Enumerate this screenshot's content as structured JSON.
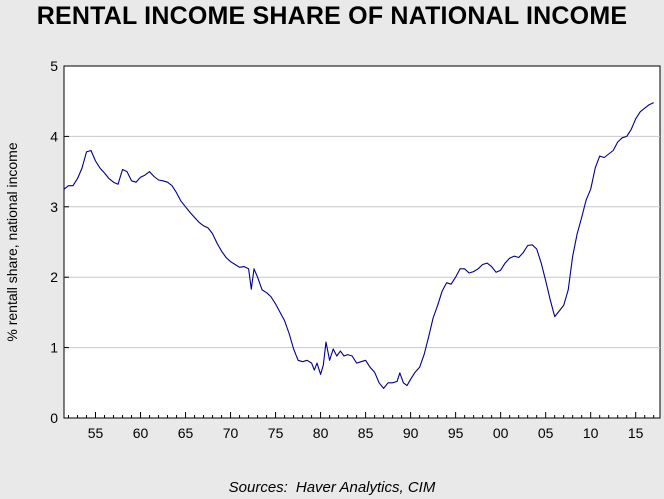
{
  "chart_data": {
    "type": "line",
    "title": "RENTAL INCOME SHARE OF NATIONAL INCOME",
    "ylabel": "% rentall share, national income",
    "xlabel": "",
    "source_label": "Sources:",
    "source_text": "Haver Analytics, CIM",
    "ylim": [
      0,
      5
    ],
    "xlim": [
      1951.5,
      2017.7
    ],
    "yticks": [
      0,
      1,
      2,
      3,
      4,
      5
    ],
    "ytick_labels": [
      "0",
      "1",
      "2",
      "3",
      "4",
      "5"
    ],
    "xticks": [
      1955,
      1960,
      1965,
      1970,
      1975,
      1980,
      1985,
      1990,
      1995,
      2000,
      2005,
      2010,
      2015
    ],
    "xtick_labels": [
      "55",
      "60",
      "65",
      "70",
      "75",
      "80",
      "85",
      "90",
      "95",
      "00",
      "05",
      "10",
      "15"
    ],
    "grid": "horizontal",
    "line_color": "#00008b",
    "series": [
      {
        "x": [
          1951.5,
          1952.0,
          1952.5,
          1953.0,
          1953.5,
          1954.0,
          1954.5,
          1955.0,
          1955.5,
          1956.0,
          1956.5,
          1957.0,
          1957.5,
          1958.0,
          1958.5,
          1959.0,
          1959.5,
          1960.0,
          1960.5,
          1961.0,
          1961.5,
          1962.0,
          1962.5,
          1963.0,
          1963.5,
          1964.0,
          1964.5,
          1965.0,
          1965.5,
          1966.0,
          1966.5,
          1967.0,
          1967.5,
          1968.0,
          1968.5,
          1969.0,
          1969.5,
          1970.0,
          1970.5,
          1971.0,
          1971.5,
          1972.0,
          1972.3,
          1972.6,
          1973.0,
          1973.5,
          1974.0,
          1974.5,
          1975.0,
          1975.5,
          1976.0,
          1976.5,
          1977.0,
          1977.5,
          1978.0,
          1978.5,
          1979.0,
          1979.3,
          1979.6,
          1980.0,
          1980.3,
          1980.6,
          1981.0,
          1981.4,
          1981.8,
          1982.2,
          1982.6,
          1983.0,
          1983.5,
          1984.0,
          1984.5,
          1985.0,
          1985.5,
          1986.0,
          1986.5,
          1987.0,
          1987.5,
          1988.0,
          1988.5,
          1988.8,
          1989.2,
          1989.6,
          1990.0,
          1990.5,
          1991.0,
          1991.5,
          1992.0,
          1992.5,
          1993.0,
          1993.5,
          1994.0,
          1994.5,
          1995.0,
          1995.5,
          1996.0,
          1996.5,
          1997.0,
          1997.5,
          1998.0,
          1998.5,
          1999.0,
          1999.5,
          2000.0,
          2000.5,
          2001.0,
          2001.5,
          2002.0,
          2002.5,
          2003.0,
          2003.5,
          2004.0,
          2004.5,
          2005.0,
          2005.5,
          2006.0,
          2006.5,
          2007.0,
          2007.5,
          2008.0,
          2008.5,
          2009.0,
          2009.5,
          2010.0,
          2010.5,
          2011.0,
          2011.5,
          2012.0,
          2012.5,
          2013.0,
          2013.5,
          2014.0,
          2014.5,
          2015.0,
          2015.5,
          2016.0,
          2016.5,
          2017.0
        ],
        "y": [
          3.25,
          3.3,
          3.3,
          3.4,
          3.55,
          3.78,
          3.8,
          3.65,
          3.55,
          3.48,
          3.4,
          3.35,
          3.32,
          3.53,
          3.5,
          3.37,
          3.35,
          3.42,
          3.45,
          3.5,
          3.43,
          3.38,
          3.37,
          3.35,
          3.3,
          3.2,
          3.08,
          3.0,
          2.92,
          2.85,
          2.78,
          2.73,
          2.7,
          2.62,
          2.48,
          2.37,
          2.28,
          2.22,
          2.18,
          2.14,
          2.15,
          2.12,
          1.83,
          2.12,
          2.0,
          1.82,
          1.78,
          1.72,
          1.62,
          1.5,
          1.38,
          1.2,
          0.98,
          0.82,
          0.8,
          0.82,
          0.78,
          0.68,
          0.78,
          0.62,
          0.75,
          1.08,
          0.82,
          0.98,
          0.88,
          0.95,
          0.88,
          0.9,
          0.88,
          0.78,
          0.8,
          0.82,
          0.72,
          0.65,
          0.5,
          0.42,
          0.5,
          0.5,
          0.52,
          0.64,
          0.5,
          0.46,
          0.55,
          0.65,
          0.72,
          0.9,
          1.15,
          1.42,
          1.6,
          1.8,
          1.92,
          1.9,
          2.0,
          2.12,
          2.12,
          2.06,
          2.08,
          2.12,
          2.18,
          2.2,
          2.15,
          2.07,
          2.1,
          2.2,
          2.27,
          2.3,
          2.28,
          2.35,
          2.45,
          2.46,
          2.4,
          2.2,
          1.95,
          1.68,
          1.44,
          1.52,
          1.6,
          1.82,
          2.3,
          2.62,
          2.85,
          3.1,
          3.25,
          3.55,
          3.72,
          3.7,
          3.75,
          3.8,
          3.92,
          3.98,
          4.0,
          4.1,
          4.25,
          4.35,
          4.4,
          4.45,
          4.48
        ]
      }
    ]
  }
}
